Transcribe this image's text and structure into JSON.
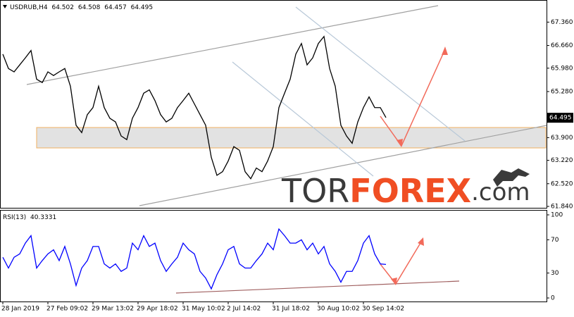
{
  "chart_data": [
    {
      "type": "line",
      "symbol": "USDRUB,H4",
      "quote": {
        "open": 64.502,
        "high": 64.508,
        "low": 64.457,
        "close": 64.495
      },
      "color": "#000000",
      "values": [
        66.4,
        65.97,
        65.87,
        66.08,
        66.29,
        66.51,
        65.65,
        65.55,
        65.87,
        65.76,
        65.87,
        65.97,
        65.44,
        64.27,
        64.05,
        64.59,
        64.8,
        65.44,
        64.8,
        64.48,
        64.37,
        63.95,
        63.84,
        64.48,
        64.8,
        65.23,
        65.33,
        65.01,
        64.59,
        64.37,
        64.48,
        64.8,
        65.01,
        65.23,
        64.91,
        64.59,
        64.27,
        63.31,
        62.77,
        62.88,
        63.2,
        63.63,
        63.52,
        62.88,
        62.67,
        62.99,
        62.88,
        63.2,
        63.63,
        64.8,
        65.23,
        65.65,
        66.4,
        66.72,
        66.08,
        66.29,
        66.72,
        66.93,
        65.97,
        65.44,
        64.27,
        63.95,
        63.73,
        64.37,
        64.8,
        65.12,
        64.8,
        64.8,
        64.5
      ],
      "ylim": [
        61.84,
        67.98
      ],
      "yticks": [
        {
          "value": 67.36,
          "label": "67.360"
        },
        {
          "value": 66.66,
          "label": "66.660"
        },
        {
          "value": 65.98,
          "label": "65.980"
        },
        {
          "value": 65.28,
          "label": "65.280"
        },
        {
          "value": 63.9,
          "label": "63.900"
        },
        {
          "value": 63.22,
          "label": "63.220"
        },
        {
          "value": 62.52,
          "label": "62.520"
        },
        {
          "value": 61.84,
          "label": "61.840"
        }
      ]
    },
    {
      "type": "line",
      "title": "RSI(13)",
      "last": 40.3331,
      "color": "#0000ff",
      "values": [
        49,
        36,
        49,
        53,
        66,
        75,
        36,
        45,
        53,
        58,
        45,
        62,
        41,
        15,
        36,
        45,
        62,
        62,
        41,
        36,
        41,
        32,
        36,
        66,
        58,
        75,
        62,
        66,
        45,
        32,
        41,
        49,
        66,
        58,
        53,
        32,
        24,
        11,
        28,
        41,
        58,
        62,
        41,
        36,
        36,
        45,
        53,
        66,
        58,
        83,
        75,
        66,
        66,
        70,
        58,
        66,
        53,
        62,
        41,
        32,
        19,
        32,
        32,
        45,
        66,
        75,
        53,
        41,
        40.3331
      ],
      "categories": [
        "28 Jan 2019",
        null,
        null,
        null,
        null,
        null,
        null,
        null,
        "27 Feb 09:02",
        null,
        null,
        null,
        null,
        null,
        null,
        null,
        "29 Mar 13:02",
        null,
        null,
        null,
        null,
        null,
        null,
        null,
        "29 Apr 18:02",
        null,
        null,
        null,
        null,
        null,
        null,
        null,
        "31 May 10:02",
        null,
        null,
        null,
        null,
        null,
        null,
        null,
        "2 Jul 14:02",
        null,
        null,
        null,
        null,
        null,
        null,
        null,
        "31 Jul 18:02",
        null,
        null,
        null,
        null,
        null,
        null,
        null,
        "30 Aug 10:02",
        null,
        null,
        null,
        null,
        null,
        null,
        null,
        "30 Sep 14:02",
        null,
        null,
        null,
        null
      ],
      "ylim": [
        0,
        100
      ],
      "yticks": [
        100,
        70,
        30,
        0
      ]
    }
  ],
  "watermark": {
    "part1": "TOR",
    "part2": "FOREX",
    "part3": ".com"
  }
}
